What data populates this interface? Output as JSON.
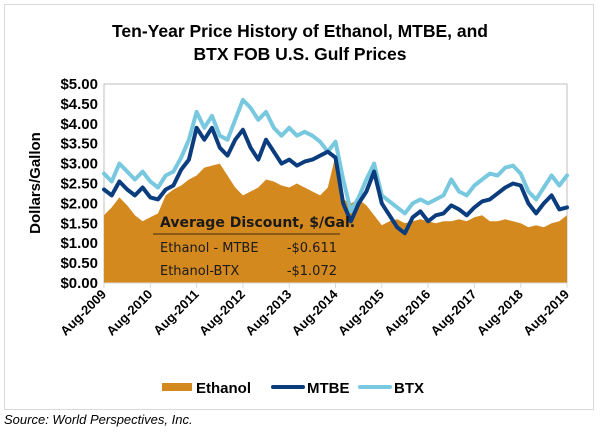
{
  "chart_data": {
    "type": "area+line",
    "title": "Ten-Year Price History of Ethanol, MTBE, and BTX FOB U.S. Gulf Prices",
    "title_lines": [
      "Ten-Year Price History of Ethanol, MTBE, and",
      "BTX FOB U.S. Gulf Prices"
    ],
    "xlabel": "",
    "ylabel": "Dollars/Gallon",
    "ylim": [
      0,
      5
    ],
    "yticks": [
      "$0.00",
      "$0.50",
      "$1.00",
      "$1.50",
      "$2.00",
      "$2.50",
      "$3.00",
      "$3.50",
      "$4.00",
      "$4.50",
      "$5.00"
    ],
    "ytick_values": [
      0,
      0.5,
      1,
      1.5,
      2,
      2.5,
      3,
      3.5,
      4,
      4.5,
      5
    ],
    "xlim_years": [
      2009.583,
      2019.583
    ],
    "xticks": [
      "Aug-2009",
      "Aug-2010",
      "Aug-2011",
      "Aug-2012",
      "Aug-2013",
      "Aug-2014",
      "Aug-2015",
      "Aug-2016",
      "Aug-2017",
      "Aug-2018",
      "Aug-2019"
    ],
    "grid": false,
    "legend_position": "bottom",
    "x_step_months": 2,
    "x_start": "Aug-2009",
    "series": [
      {
        "name": "Ethanol",
        "type": "area",
        "color": "#d4891f",
        "values": [
          1.7,
          1.9,
          2.15,
          1.95,
          1.7,
          1.55,
          1.65,
          1.75,
          2.2,
          2.35,
          2.45,
          2.6,
          2.7,
          2.9,
          2.95,
          3.0,
          2.7,
          2.4,
          2.2,
          2.3,
          2.4,
          2.6,
          2.55,
          2.45,
          2.4,
          2.5,
          2.4,
          2.3,
          2.2,
          2.4,
          3.2,
          2.1,
          2.0,
          2.1,
          1.95,
          1.7,
          1.45,
          1.55,
          1.6,
          1.5,
          1.55,
          1.6,
          1.55,
          1.5,
          1.55,
          1.55,
          1.6,
          1.55,
          1.65,
          1.7,
          1.55,
          1.55,
          1.6,
          1.55,
          1.5,
          1.4,
          1.45,
          1.4,
          1.5,
          1.55,
          1.7
        ]
      },
      {
        "name": "MTBE",
        "type": "line",
        "color": "#0b3d7e",
        "values": [
          2.35,
          2.2,
          2.55,
          2.35,
          2.2,
          2.4,
          2.15,
          2.1,
          2.35,
          2.45,
          2.85,
          3.1,
          3.9,
          3.6,
          3.9,
          3.4,
          3.2,
          3.6,
          3.85,
          3.4,
          3.1,
          3.6,
          3.3,
          3.0,
          3.1,
          2.95,
          3.05,
          3.1,
          3.2,
          3.3,
          3.15,
          2.0,
          1.55,
          2.0,
          2.3,
          2.8,
          2.0,
          1.7,
          1.4,
          1.25,
          1.65,
          1.8,
          1.55,
          1.7,
          1.75,
          1.95,
          1.85,
          1.7,
          1.9,
          2.05,
          2.1,
          2.25,
          2.4,
          2.5,
          2.45,
          2.0,
          1.75,
          2.0,
          2.2,
          1.85,
          1.9
        ]
      },
      {
        "name": "BTX",
        "type": "line",
        "color": "#78c8e0",
        "values": [
          2.75,
          2.55,
          3.0,
          2.8,
          2.6,
          2.8,
          2.55,
          2.4,
          2.7,
          2.8,
          3.15,
          3.6,
          4.3,
          3.9,
          4.2,
          3.7,
          3.6,
          4.1,
          4.6,
          4.4,
          4.1,
          4.3,
          3.9,
          3.7,
          3.9,
          3.7,
          3.8,
          3.7,
          3.55,
          3.3,
          3.55,
          2.6,
          1.8,
          2.15,
          2.6,
          3.0,
          2.2,
          2.05,
          1.9,
          1.75,
          2.0,
          2.1,
          2.0,
          2.1,
          2.2,
          2.6,
          2.3,
          2.2,
          2.45,
          2.6,
          2.75,
          2.7,
          2.9,
          2.95,
          2.75,
          2.3,
          2.1,
          2.4,
          2.7,
          2.45,
          2.7
        ]
      }
    ],
    "annotation": {
      "header": "Average Discount, $/Gal.",
      "rows": [
        {
          "label": "Ethanol - MTBE",
          "value": "-$0.611"
        },
        {
          "label": "Ethanol-BTX",
          "value": "-$1.072"
        }
      ]
    }
  },
  "source": "Source: World Perspectives, Inc."
}
